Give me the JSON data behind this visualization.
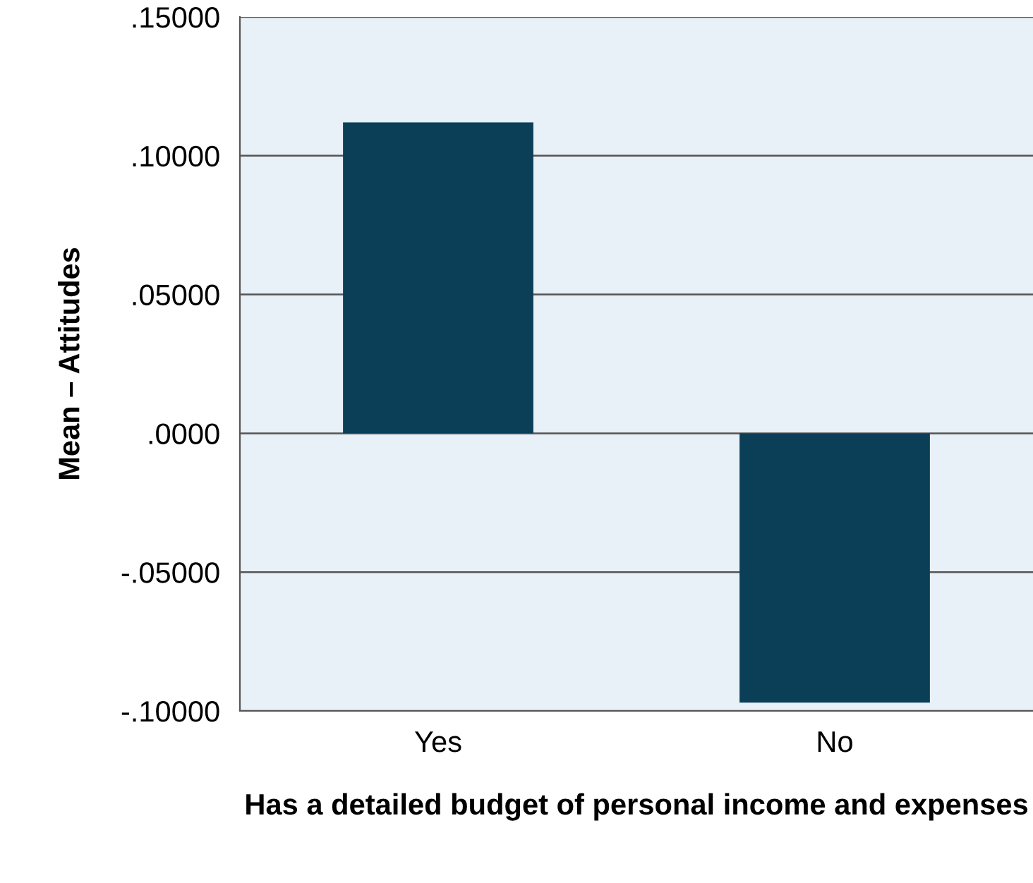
{
  "chart_data": {
    "type": "bar",
    "xlabel": "Has a detailed budget of personal income and expenses",
    "ylabel": "Mean – Attitudes",
    "categories": [
      "Yes",
      "No"
    ],
    "values": [
      0.112,
      -0.097
    ],
    "color": "#0b3e57",
    "ylim": [
      -0.1,
      0.15
    ],
    "yticks": [
      {
        "value": -0.1,
        "label": "-.10000"
      },
      {
        "value": -0.05,
        "label": "-.05000"
      },
      {
        "value": 0,
        "label": ".0000"
      },
      {
        "value": 0.05,
        "label": ".05000"
      },
      {
        "value": 0.1,
        "label": ".10000"
      },
      {
        "value": 0.15,
        "label": ".15000"
      }
    ],
    "grid": "y"
  }
}
